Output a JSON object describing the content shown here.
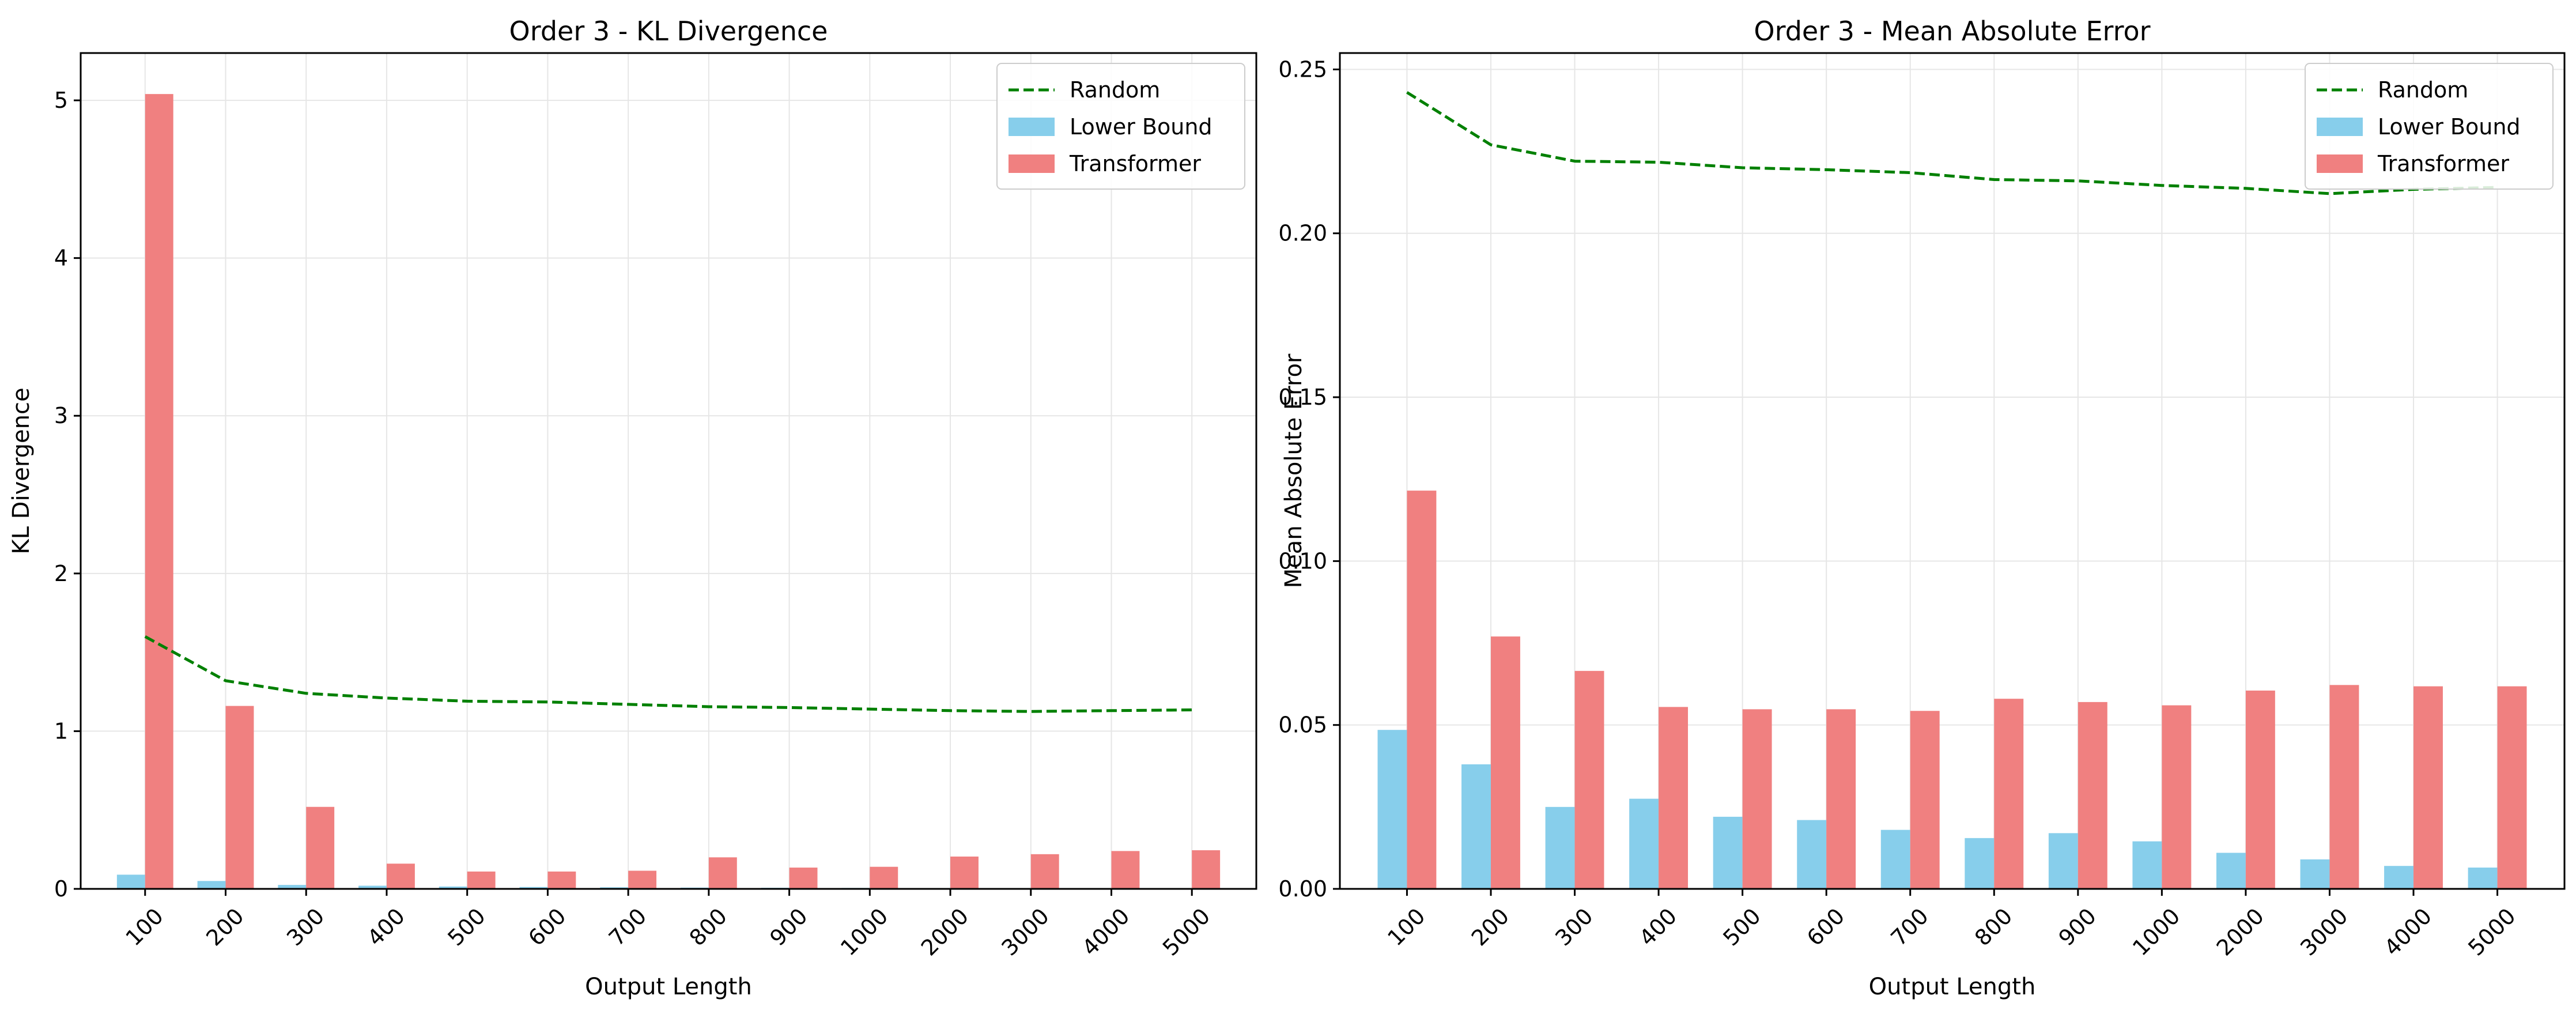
{
  "chart_data": [
    {
      "type": "bar",
      "title": "Order 3 - KL Divergence",
      "xlabel": "Output Length",
      "ylabel": "KL Divergence",
      "categories": [
        "100",
        "200",
        "300",
        "400",
        "500",
        "600",
        "700",
        "800",
        "900",
        "1000",
        "2000",
        "3000",
        "4000",
        "5000"
      ],
      "ylim": [
        0,
        5.3
      ],
      "yticks": [
        "0",
        "1",
        "2",
        "3",
        "4",
        "5"
      ],
      "grid": true,
      "legend_position": "top-right",
      "series": [
        {
          "name": "Random",
          "kind": "line",
          "style": "dashed",
          "color": "#008000",
          "values": [
            1.6,
            1.32,
            1.24,
            1.21,
            1.19,
            1.185,
            1.17,
            1.155,
            1.15,
            1.14,
            1.13,
            1.125,
            1.13,
            1.135
          ]
        },
        {
          "name": "Lower Bound",
          "kind": "bar",
          "color": "#87ceeb",
          "values": [
            0.09,
            0.05,
            0.025,
            0.02,
            0.015,
            0.012,
            0.01,
            0.008,
            0.007,
            0.006,
            0.005,
            0.004,
            0.003,
            0.003
          ]
        },
        {
          "name": "Transformer",
          "kind": "bar",
          "color": "#f08080",
          "values": [
            5.04,
            1.16,
            0.52,
            0.16,
            0.11,
            0.11,
            0.115,
            0.2,
            0.135,
            0.14,
            0.205,
            0.22,
            0.24,
            0.245
          ]
        }
      ]
    },
    {
      "type": "bar",
      "title": "Order 3 - Mean Absolute Error",
      "xlabel": "Output Length",
      "ylabel": "Mean Absolute Error",
      "categories": [
        "100",
        "200",
        "300",
        "400",
        "500",
        "600",
        "700",
        "800",
        "900",
        "1000",
        "2000",
        "3000",
        "4000",
        "5000"
      ],
      "ylim": [
        0,
        0.255
      ],
      "yticks": [
        "0.00",
        "0.05",
        "0.10",
        "0.15",
        "0.20",
        "0.25"
      ],
      "grid": true,
      "legend_position": "top-right",
      "series": [
        {
          "name": "Random",
          "kind": "line",
          "style": "dashed",
          "color": "#008000",
          "values": [
            0.243,
            0.227,
            0.222,
            0.2217,
            0.22,
            0.2194,
            0.2185,
            0.2164,
            0.216,
            0.2146,
            0.2137,
            0.2121,
            0.2134,
            0.214
          ]
        },
        {
          "name": "Lower Bound",
          "kind": "bar",
          "color": "#87ceeb",
          "values": [
            0.0485,
            0.038,
            0.025,
            0.0275,
            0.022,
            0.021,
            0.018,
            0.0155,
            0.017,
            0.0145,
            0.011,
            0.009,
            0.007,
            0.0065
          ]
        },
        {
          "name": "Transformer",
          "kind": "bar",
          "color": "#f08080",
          "values": [
            0.1215,
            0.077,
            0.0665,
            0.0555,
            0.0548,
            0.0548,
            0.0543,
            0.058,
            0.057,
            0.056,
            0.0605,
            0.0622,
            0.0618,
            0.0618
          ]
        }
      ]
    }
  ]
}
